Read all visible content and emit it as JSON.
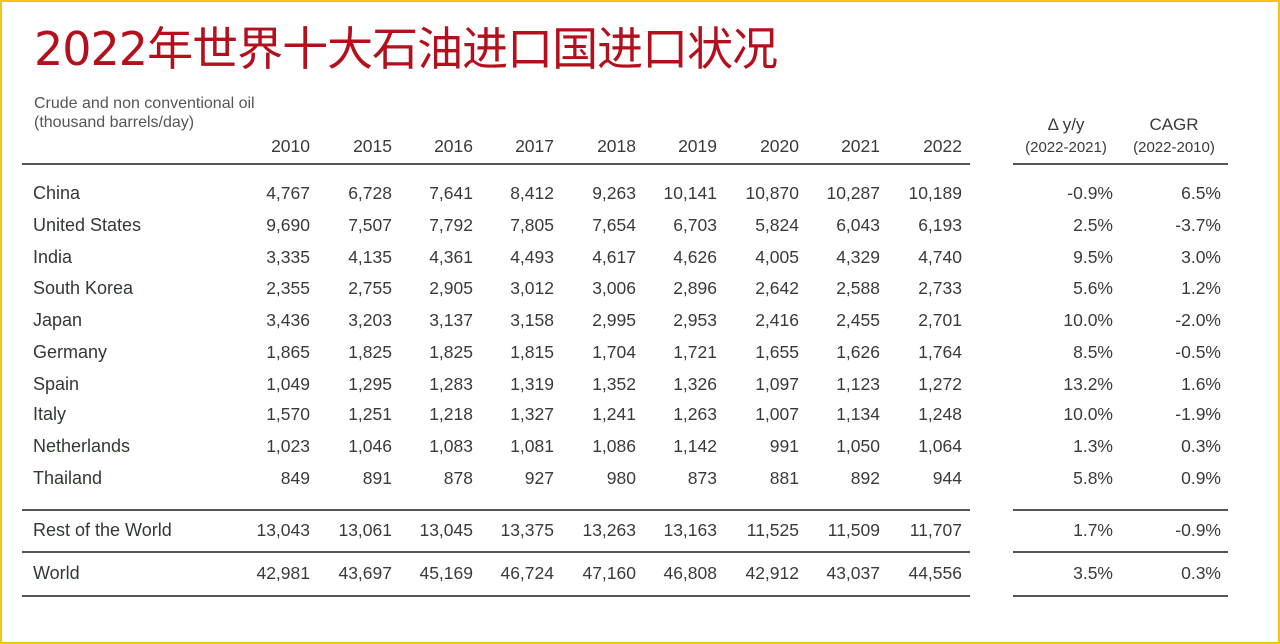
{
  "title": "2022年世界十大石油进口国进口状况",
  "subtitle_line1": "Crude and non conventional oil",
  "subtitle_line2": "(thousand barrels/day)",
  "years": [
    "2010",
    "2015",
    "2016",
    "2017",
    "2018",
    "2019",
    "2020",
    "2021",
    "2022"
  ],
  "delta_header": "Δ y/y",
  "delta_sub": "(2022-2021)",
  "cagr_header": "CAGR",
  "cagr_sub": "(2022-2010)",
  "rows": [
    {
      "country": "China",
      "values": [
        "4,767",
        "6,728",
        "7,641",
        "8,412",
        "9,263",
        "10,141",
        "10,870",
        "10,287",
        "10,189"
      ],
      "delta": "-0.9%",
      "cagr": "6.5%"
    },
    {
      "country": "United States",
      "values": [
        "9,690",
        "7,507",
        "7,792",
        "7,805",
        "7,654",
        "6,703",
        "5,824",
        "6,043",
        "6,193"
      ],
      "delta": "2.5%",
      "cagr": "-3.7%"
    },
    {
      "country": "India",
      "values": [
        "3,335",
        "4,135",
        "4,361",
        "4,493",
        "4,617",
        "4,626",
        "4,005",
        "4,329",
        "4,740"
      ],
      "delta": "9.5%",
      "cagr": "3.0%"
    },
    {
      "country": "South Korea",
      "values": [
        "2,355",
        "2,755",
        "2,905",
        "3,012",
        "3,006",
        "2,896",
        "2,642",
        "2,588",
        "2,733"
      ],
      "delta": "5.6%",
      "cagr": "1.2%"
    },
    {
      "country": "Japan",
      "values": [
        "3,436",
        "3,203",
        "3,137",
        "3,158",
        "2,995",
        "2,953",
        "2,416",
        "2,455",
        "2,701"
      ],
      "delta": "10.0%",
      "cagr": "-2.0%"
    },
    {
      "country": "Germany",
      "values": [
        "1,865",
        "1,825",
        "1,825",
        "1,815",
        "1,704",
        "1,721",
        "1,655",
        "1,626",
        "1,764"
      ],
      "delta": "8.5%",
      "cagr": "-0.5%"
    },
    {
      "country": "Spain",
      "values": [
        "1,049",
        "1,295",
        "1,283",
        "1,319",
        "1,352",
        "1,326",
        "1,097",
        "1,123",
        "1,272"
      ],
      "delta": "13.2%",
      "cagr": "1.6%"
    },
    {
      "country": "Italy",
      "values": [
        "1,570",
        "1,251",
        "1,218",
        "1,327",
        "1,241",
        "1,263",
        "1,007",
        "1,134",
        "1,248"
      ],
      "delta": "10.0%",
      "cagr": "-1.9%"
    },
    {
      "country": "Netherlands",
      "values": [
        "1,023",
        "1,046",
        "1,083",
        "1,081",
        "1,086",
        "1,142",
        "991",
        "1,050",
        "1,064"
      ],
      "delta": "1.3%",
      "cagr": "0.3%"
    },
    {
      "country": "Thailand",
      "values": [
        "849",
        "891",
        "878",
        "927",
        "980",
        "873",
        "881",
        "892",
        "944"
      ],
      "delta": "5.8%",
      "cagr": "0.9%"
    }
  ],
  "rest": {
    "country": "Rest of the World",
    "values": [
      "13,043",
      "13,061",
      "13,045",
      "13,375",
      "13,263",
      "13,163",
      "11,525",
      "11,509",
      "11,707"
    ],
    "delta": "1.7%",
    "cagr": "-0.9%"
  },
  "world": {
    "country": "World",
    "values": [
      "42,981",
      "43,697",
      "45,169",
      "46,724",
      "47,160",
      "46,808",
      "42,912",
      "43,037",
      "44,556"
    ],
    "delta": "3.5%",
    "cagr": "0.3%"
  }
}
